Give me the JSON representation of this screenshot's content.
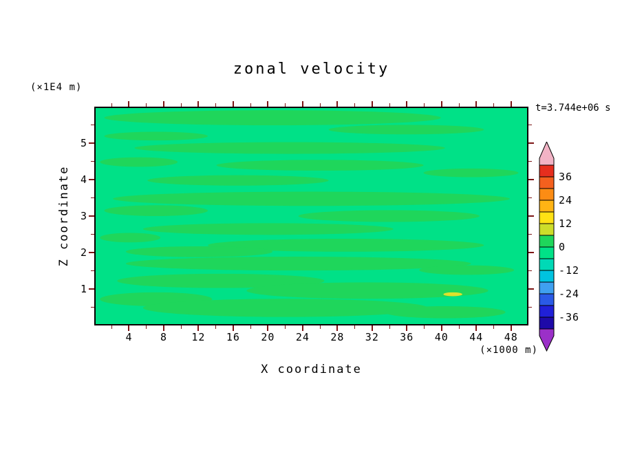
{
  "figure": {
    "title": "zonal velocity",
    "timestamp": "t=3.744e+06 s",
    "y_unit": "(×1E4 m)",
    "x_unit": "(×1000 m)",
    "xlabel": "X coordinate",
    "ylabel": "Z coordinate"
  },
  "chart_data": {
    "type": "heatmap",
    "title": "zonal velocity",
    "xlabel": "X coordinate",
    "ylabel": "Z coordinate",
    "x_unit_label": "(×1000 m)",
    "y_unit_label": "(×1E4 m)",
    "time_label": "t=3.744e+06 s",
    "x_range": [
      0,
      50
    ],
    "y_range": [
      0,
      6
    ],
    "x_ticks": [
      4,
      8,
      12,
      16,
      20,
      24,
      28,
      32,
      36,
      40,
      44,
      48
    ],
    "x_minor_step": 2,
    "y_ticks": [
      1,
      2,
      3,
      4,
      5
    ],
    "y_minor_step": 0.5,
    "tick_color": "#7c1414",
    "frame_color": "#000000",
    "field": {
      "base_band_value_range": [
        -6,
        0
      ],
      "base_band_color": "#00e187",
      "patch_band_value_range": [
        0,
        6
      ],
      "patch_band_color": "#1fd65b",
      "spot_band_value_range": [
        6,
        12
      ],
      "spot_color": "#dde12c",
      "patches": [
        {
          "cx": 0.41,
          "cy": 0.045,
          "rx": 0.39,
          "ry": 0.035
        },
        {
          "cx": 0.72,
          "cy": 0.1,
          "rx": 0.18,
          "ry": 0.022
        },
        {
          "cx": 0.14,
          "cy": 0.13,
          "rx": 0.12,
          "ry": 0.02
        },
        {
          "cx": 0.45,
          "cy": 0.185,
          "rx": 0.36,
          "ry": 0.027
        },
        {
          "cx": 0.1,
          "cy": 0.25,
          "rx": 0.09,
          "ry": 0.022
        },
        {
          "cx": 0.52,
          "cy": 0.265,
          "rx": 0.24,
          "ry": 0.025
        },
        {
          "cx": 0.87,
          "cy": 0.3,
          "rx": 0.11,
          "ry": 0.02
        },
        {
          "cx": 0.33,
          "cy": 0.335,
          "rx": 0.21,
          "ry": 0.024
        },
        {
          "cx": 0.5,
          "cy": 0.42,
          "rx": 0.46,
          "ry": 0.033
        },
        {
          "cx": 0.14,
          "cy": 0.475,
          "rx": 0.12,
          "ry": 0.025
        },
        {
          "cx": 0.68,
          "cy": 0.5,
          "rx": 0.21,
          "ry": 0.027
        },
        {
          "cx": 0.4,
          "cy": 0.56,
          "rx": 0.29,
          "ry": 0.027
        },
        {
          "cx": 0.08,
          "cy": 0.6,
          "rx": 0.07,
          "ry": 0.022
        },
        {
          "cx": 0.58,
          "cy": 0.635,
          "rx": 0.32,
          "ry": 0.03
        },
        {
          "cx": 0.24,
          "cy": 0.665,
          "rx": 0.17,
          "ry": 0.025
        },
        {
          "cx": 0.47,
          "cy": 0.72,
          "rx": 0.4,
          "ry": 0.032
        },
        {
          "cx": 0.86,
          "cy": 0.75,
          "rx": 0.11,
          "ry": 0.022
        },
        {
          "cx": 0.29,
          "cy": 0.8,
          "rx": 0.24,
          "ry": 0.033
        },
        {
          "cx": 0.63,
          "cy": 0.845,
          "rx": 0.28,
          "ry": 0.038
        },
        {
          "cx": 0.14,
          "cy": 0.885,
          "rx": 0.13,
          "ry": 0.032
        },
        {
          "cx": 0.44,
          "cy": 0.925,
          "rx": 0.33,
          "ry": 0.042
        },
        {
          "cx": 0.81,
          "cy": 0.945,
          "rx": 0.14,
          "ry": 0.028
        }
      ],
      "spots": [
        {
          "cx": 0.828,
          "cy": 0.862,
          "rx": 0.022,
          "ry": 0.009
        }
      ]
    },
    "colorbar": {
      "labels": [
        "36",
        "24",
        "12",
        "0",
        "-12",
        "-24",
        "-36"
      ],
      "level_step": 6,
      "range": [
        -42,
        42
      ],
      "over_color": "#f2b3c5",
      "under_color": "#9b30c8",
      "colors_top_to_bottom": [
        "#e62e1e",
        "#f4601e",
        "#fc8c14",
        "#ffb414",
        "#ffe114",
        "#cddd2a",
        "#1fd65b",
        "#00e187",
        "#00d9b6",
        "#00c3e0",
        "#3fa0f0",
        "#2a5ae6",
        "#2020d8",
        "#1e0aa8"
      ]
    }
  }
}
